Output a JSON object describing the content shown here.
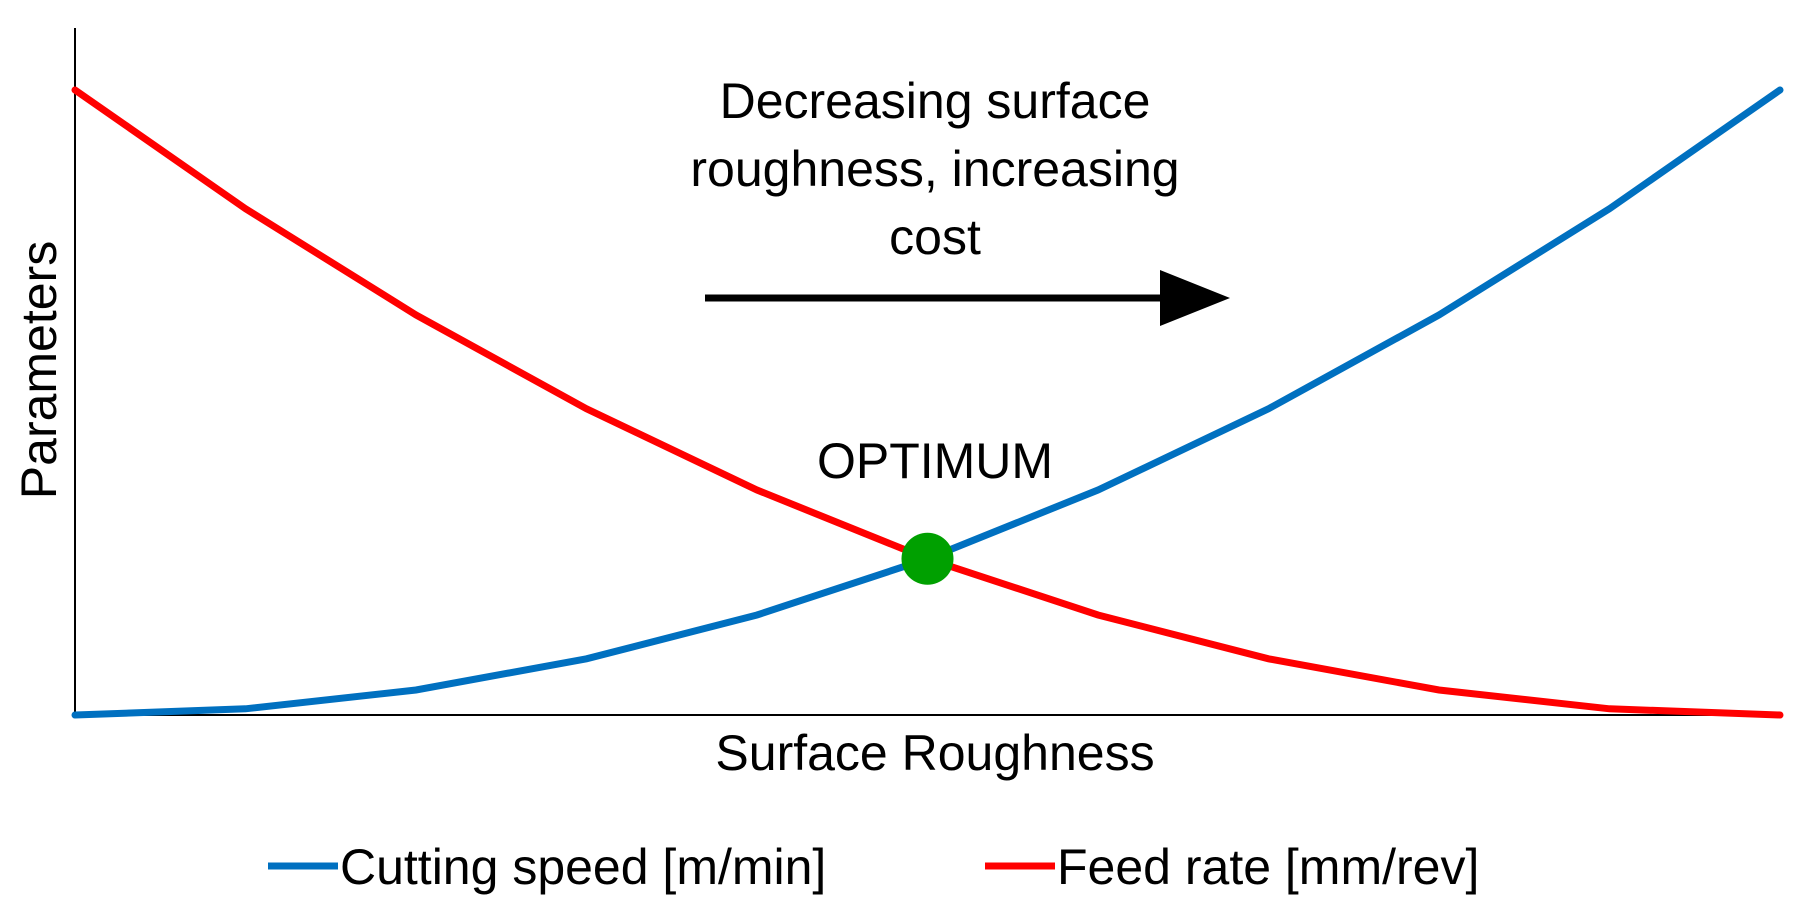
{
  "chart_data": {
    "type": "line",
    "title": "",
    "xlabel": "Surface Roughness",
    "ylabel": "Parameters",
    "xlim": [
      0,
      1
    ],
    "ylim": [
      0,
      1
    ],
    "grid": false,
    "legend_position": "bottom",
    "x": [
      0,
      0.1,
      0.2,
      0.3,
      0.4,
      0.5,
      0.6,
      0.7,
      0.8,
      0.9,
      1.0
    ],
    "series": [
      {
        "name": "Cutting speed [m/min]",
        "color": "#0070C0",
        "values": [
          0,
          0.01,
          0.04,
          0.09,
          0.16,
          0.25,
          0.36,
          0.49,
          0.64,
          0.81,
          1.0
        ]
      },
      {
        "name": "Feed rate [mm/rev]",
        "color": "#FF0000",
        "values": [
          1.0,
          0.81,
          0.64,
          0.49,
          0.36,
          0.25,
          0.16,
          0.09,
          0.04,
          0.01,
          0
        ]
      }
    ],
    "annotations": {
      "trend_text": [
        "Decreasing surface",
        "roughness, increasing",
        "cost"
      ],
      "trend_arrow_direction": "right",
      "optimum_label": "OPTIMUM",
      "optimum_point": {
        "x": 0.5,
        "y": 0.25
      },
      "optimum_color": "#00A000"
    }
  }
}
